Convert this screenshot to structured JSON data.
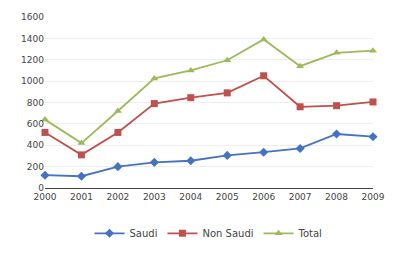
{
  "chart_data": {
    "type": "line",
    "x": [
      2000,
      2001,
      2002,
      2003,
      2004,
      2005,
      2006,
      2007,
      2008,
      2009
    ],
    "series": [
      {
        "name": "Saudi",
        "color": "#4472c4",
        "marker": "diamond",
        "values": [
          120,
          110,
          200,
          240,
          255,
          305,
          335,
          370,
          505,
          480
        ]
      },
      {
        "name": "Non Saudi",
        "color": "#c0504d",
        "marker": "square",
        "values": [
          520,
          310,
          520,
          790,
          845,
          890,
          1050,
          760,
          770,
          805
        ]
      },
      {
        "name": "Total",
        "color": "#9bbb59",
        "marker": "triangle-up",
        "values": [
          640,
          420,
          720,
          1025,
          1100,
          1195,
          1390,
          1140,
          1265,
          1285
        ]
      }
    ],
    "xlim": [
      2000,
      2009
    ],
    "xticks": [
      2000,
      2001,
      2002,
      2003,
      2004,
      2005,
      2006,
      2007,
      2008,
      2009
    ],
    "ylim": [
      0,
      1600
    ],
    "yticks": [
      0,
      200,
      400,
      600,
      800,
      1000,
      1200,
      1400,
      1600
    ],
    "grid": true,
    "legend": "bottom"
  }
}
